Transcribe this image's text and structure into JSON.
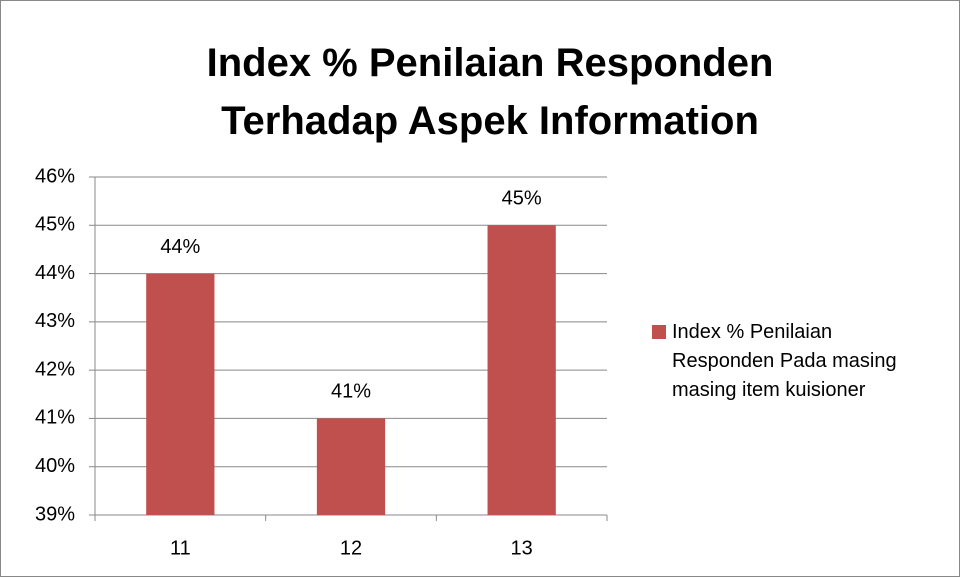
{
  "chart_data": {
    "type": "bar",
    "title": "Index % Penilaian Responden Terhadap Aspek Information",
    "categories": [
      "11",
      "12",
      "13"
    ],
    "series": [
      {
        "name": "Index % Penilaian Responden Pada masing masing item kuisioner",
        "color": "#c0504d",
        "values": [
          44,
          41,
          45
        ],
        "value_labels": [
          "44%",
          "41%",
          "45%"
        ]
      }
    ],
    "ylim": [
      39,
      46
    ],
    "yticks": [
      {
        "value": 39,
        "label": "39%"
      },
      {
        "value": 40,
        "label": "40%"
      },
      {
        "value": 41,
        "label": "41%"
      },
      {
        "value": 42,
        "label": "42%"
      },
      {
        "value": 43,
        "label": "43%"
      },
      {
        "value": 44,
        "label": "44%"
      },
      {
        "value": 45,
        "label": "45%"
      },
      {
        "value": 46,
        "label": "46%"
      }
    ],
    "grid": true,
    "legend": "right"
  }
}
